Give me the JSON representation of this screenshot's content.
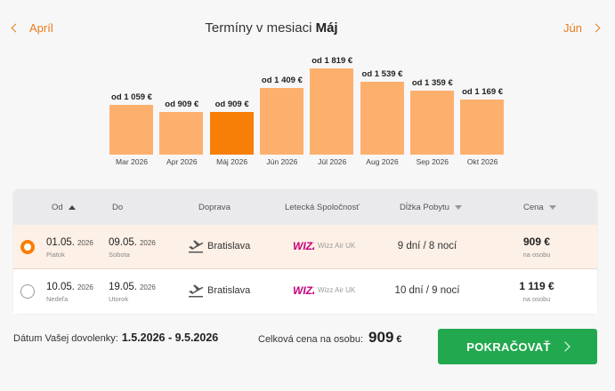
{
  "header": {
    "prev_month": "Apríl",
    "next_month": "Jún",
    "title_prefix": "Termíny v mesiaci",
    "title_month": "Máj"
  },
  "chart_data": {
    "type": "bar",
    "categories": [
      "Mar 2026",
      "Apr 2026",
      "Máj 2026",
      "Jún 2026",
      "Júl 2026",
      "Aug 2026",
      "Sep 2026",
      "Okt 2026"
    ],
    "values": [
      1059,
      909,
      909,
      1409,
      1819,
      1539,
      1359,
      1169
    ],
    "labels": [
      "od 1 059 €",
      "od 909 €",
      "od 909 €",
      "od 1 409 €",
      "od 1 819 €",
      "od 1 539 €",
      "od 1 359 €",
      "od 1 169 €"
    ],
    "selected_index": 2,
    "colors": {
      "bar": "#fdb06e",
      "selected": "#f77f08"
    }
  },
  "table": {
    "headers": {
      "od": "Od",
      "do": "Do",
      "doprava": "Doprava",
      "airline": "Letecká Spoločnosť",
      "stay": "Dĺžka Pobytu",
      "price": "Cena"
    },
    "rows": [
      {
        "selected": true,
        "from_date": "01.05.",
        "from_year": "2026",
        "from_day": "Piatok",
        "to_date": "09.05.",
        "to_year": "2026",
        "to_day": "Sobota",
        "city": "Bratislava",
        "airline": "Wizz Air UK",
        "stay": "9 dní / 8 nocí",
        "price": "909 €",
        "per": "na osobu"
      },
      {
        "selected": false,
        "from_date": "10.05.",
        "from_year": "2026",
        "from_day": "Nedeľa",
        "to_date": "19.05.",
        "to_year": "2026",
        "to_day": "Utorok",
        "city": "Bratislava",
        "airline": "Wizz Air UK",
        "stay": "10 dní / 9 nocí",
        "price": "1 119 €",
        "per": "na osobu"
      }
    ]
  },
  "footer": {
    "date_label": "Dátum Vašej dovolenky:",
    "date_value": "1.5.2026 - 9.5.2026",
    "total_label": "Celková cena na osobu:",
    "total_value": "909",
    "total_currency": "€",
    "button_label": "POKRAČOVAŤ"
  }
}
